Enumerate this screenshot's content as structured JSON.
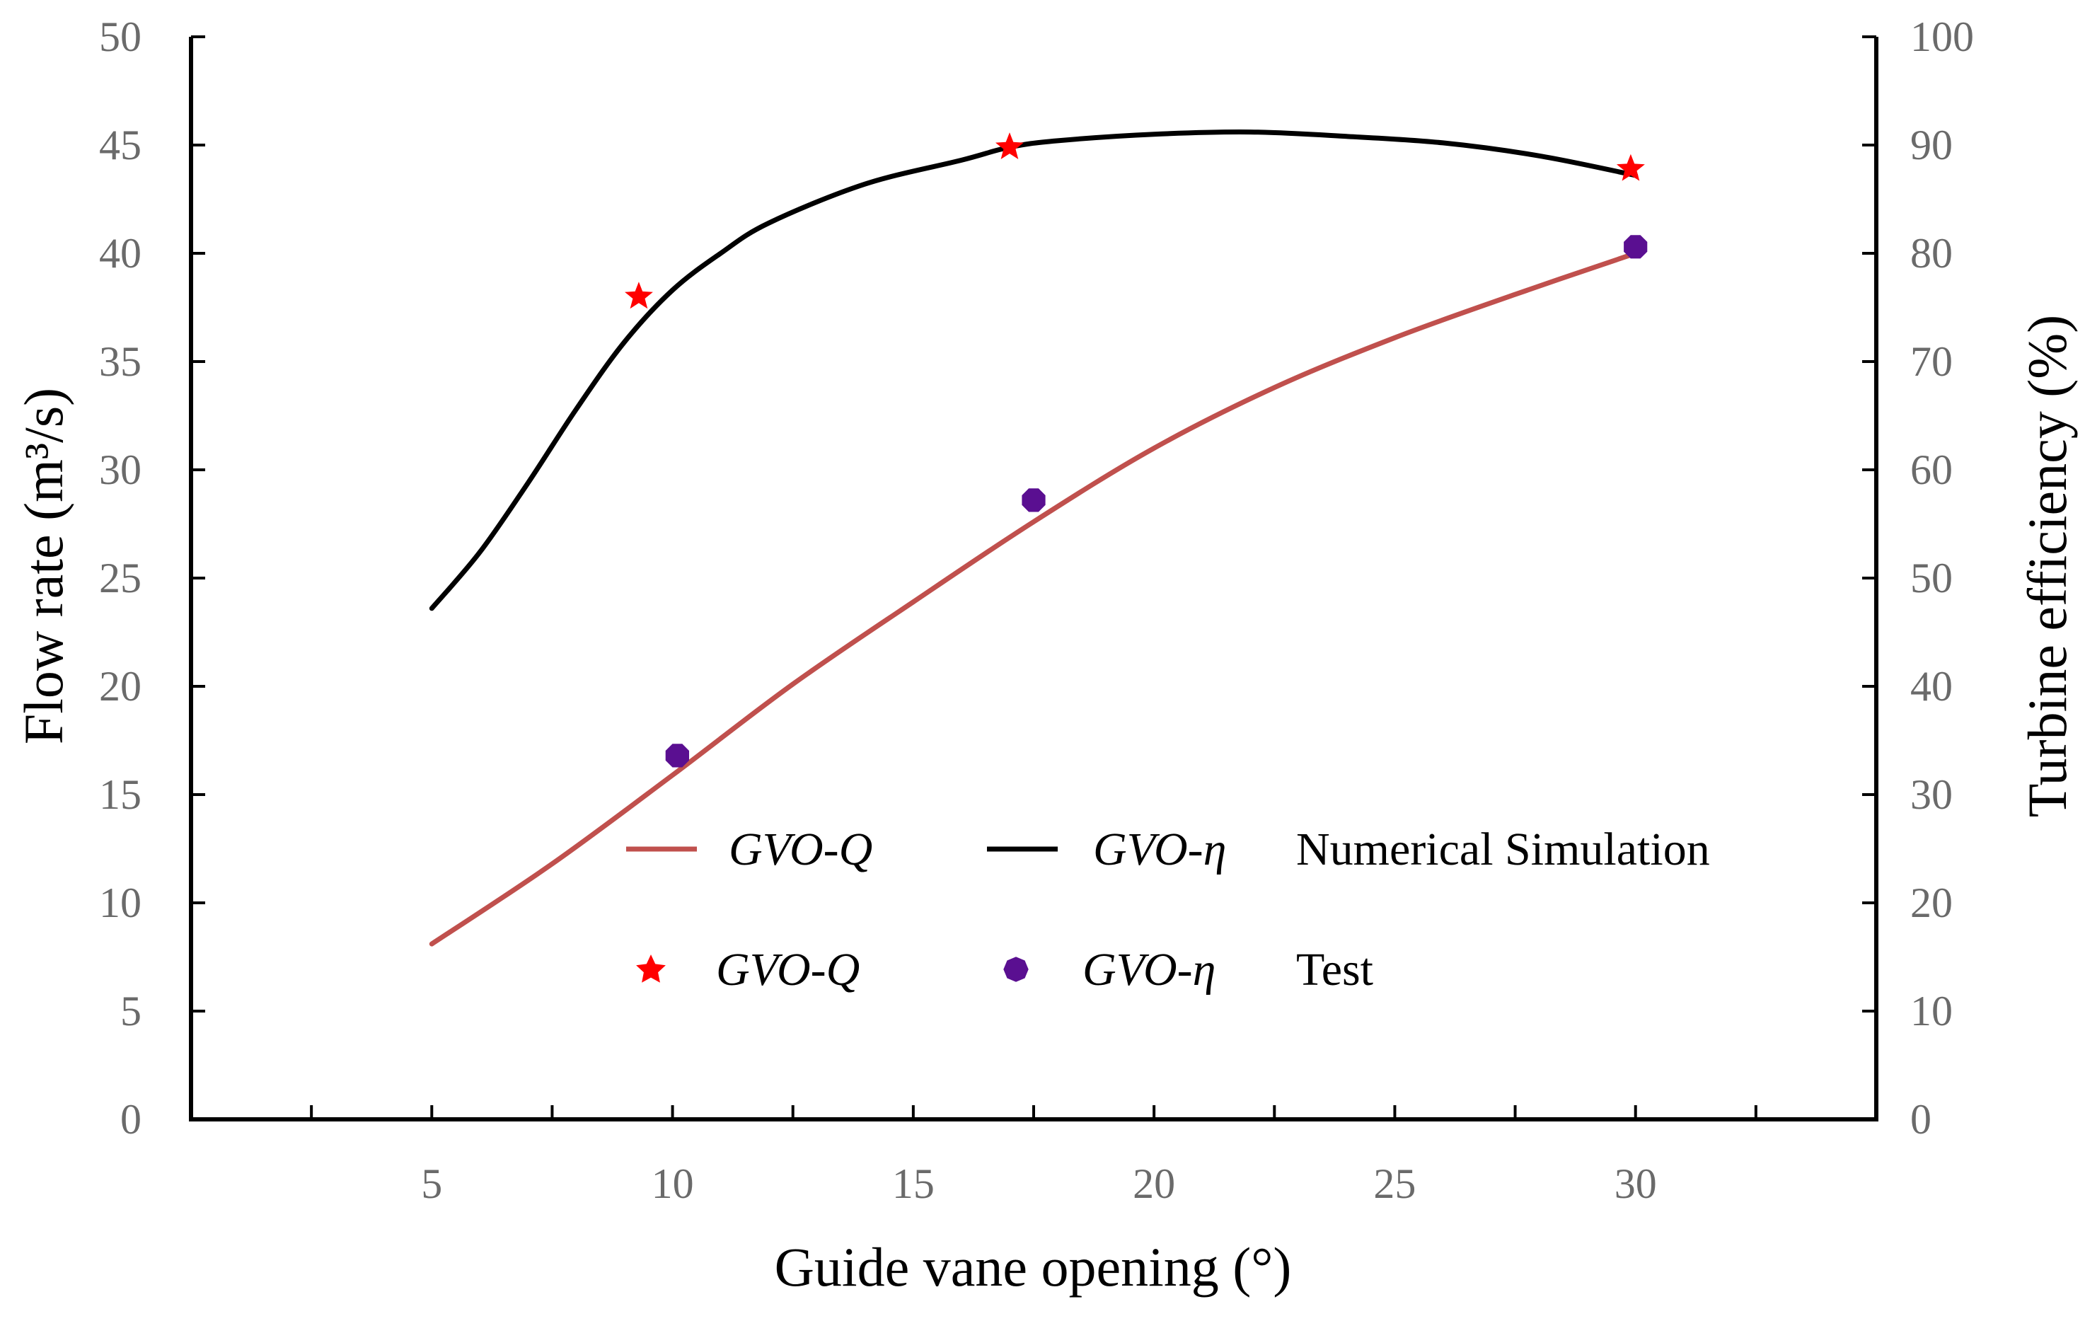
{
  "chart_data": {
    "type": "line",
    "xlabel": "Guide vane opening (°)",
    "ylabel_left": "Flow rate (m³/s)",
    "ylabel_right": "Turbine efficiency (%)",
    "xlim": [
      0,
      35
    ],
    "ylim_left": [
      0,
      50
    ],
    "ylim_right": [
      0,
      100
    ],
    "x_ticks": [
      "5",
      "10",
      "15",
      "20",
      "25",
      "30"
    ],
    "y_left_ticks": [
      "0",
      "5",
      "10",
      "15",
      "20",
      "25",
      "30",
      "35",
      "40",
      "45",
      "50"
    ],
    "y_right_ticks": [
      "0",
      "10",
      "20",
      "30",
      "40",
      "50",
      "60",
      "70",
      "80",
      "90",
      "100"
    ],
    "grid": false,
    "series": [
      {
        "name": "GVO-Q",
        "kind": "simulation-line",
        "axis": "left",
        "color": "#c0504d",
        "x": [
          5,
          7.5,
          10,
          12.5,
          15,
          17.5,
          20,
          22.5,
          25,
          27.5,
          30
        ],
        "values": [
          8.1,
          11.8,
          15.9,
          20.1,
          23.9,
          27.6,
          31.0,
          33.8,
          36.1,
          38.1,
          40.0
        ]
      },
      {
        "name": "GVO-η",
        "kind": "simulation-line",
        "axis": "left",
        "color": "#000000",
        "x": [
          5,
          6,
          7,
          8,
          9,
          10,
          11,
          12,
          14,
          16,
          17,
          18,
          20,
          22,
          24,
          26,
          28,
          30
        ],
        "values": [
          23.6,
          26.2,
          29.4,
          32.8,
          35.9,
          38.3,
          40.0,
          41.4,
          43.2,
          44.3,
          44.9,
          45.2,
          45.5,
          45.6,
          45.4,
          45.1,
          44.5,
          43.6
        ]
      },
      {
        "name": "GVO-Q",
        "kind": "test-points",
        "axis": "left",
        "marker": "star",
        "color": "#ff0000",
        "x": [
          9.3,
          17.0,
          29.9
        ],
        "values": [
          38.0,
          44.9,
          43.9
        ]
      },
      {
        "name": "GVO-η",
        "kind": "test-points",
        "axis": "left",
        "marker": "octagon",
        "color": "#5a0f91",
        "x": [
          10.1,
          17.5,
          30.0
        ],
        "values": [
          16.8,
          28.6,
          40.3
        ]
      }
    ],
    "legend": {
      "position": "bottom-right",
      "row1_label": "Numerical Simulation",
      "row2_label": "Test",
      "q_label": "GVO-Q",
      "eta_label": "GVO-η"
    }
  }
}
